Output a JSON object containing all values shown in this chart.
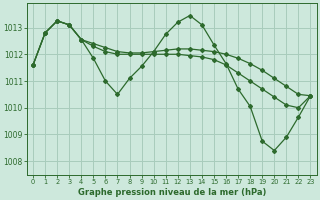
{
  "title": "Graphe pression niveau de la mer (hPa)",
  "background_color": "#cde8dc",
  "grid_color": "#a8ccbc",
  "line_color": "#2d6a2d",
  "xlim": [
    -0.5,
    23.5
  ],
  "ylim": [
    1007.5,
    1013.9
  ],
  "yticks": [
    1008,
    1009,
    1010,
    1011,
    1012,
    1013
  ],
  "xticks": [
    0,
    1,
    2,
    3,
    4,
    5,
    6,
    7,
    8,
    9,
    10,
    11,
    12,
    13,
    14,
    15,
    16,
    17,
    18,
    19,
    20,
    21,
    22,
    23
  ],
  "series1": [
    1011.6,
    1012.8,
    1013.25,
    1013.1,
    1012.55,
    1011.85,
    1011.0,
    1010.5,
    1011.1,
    1011.55,
    1012.1,
    1012.75,
    1013.2,
    1013.45,
    1013.1,
    1012.35,
    1011.65,
    1010.7,
    1010.05,
    1008.75,
    1008.4,
    1008.9,
    1009.65,
    1010.45
  ],
  "series2": [
    1011.6,
    1012.8,
    1013.25,
    1013.1,
    1012.55,
    1012.3,
    1012.1,
    1012.0,
    1012.0,
    1012.0,
    1012.0,
    1012.0,
    1012.0,
    1011.95,
    1011.9,
    1011.8,
    1011.6,
    1011.3,
    1011.0,
    1010.7,
    1010.4,
    1010.1,
    1010.0,
    1010.45
  ],
  "series3": [
    1011.6,
    1012.8,
    1013.25,
    1013.1,
    1012.55,
    1012.4,
    1012.25,
    1012.1,
    1012.05,
    1012.05,
    1012.1,
    1012.15,
    1012.2,
    1012.2,
    1012.15,
    1012.1,
    1012.0,
    1011.85,
    1011.65,
    1011.4,
    1011.1,
    1010.8,
    1010.5,
    1010.45
  ]
}
